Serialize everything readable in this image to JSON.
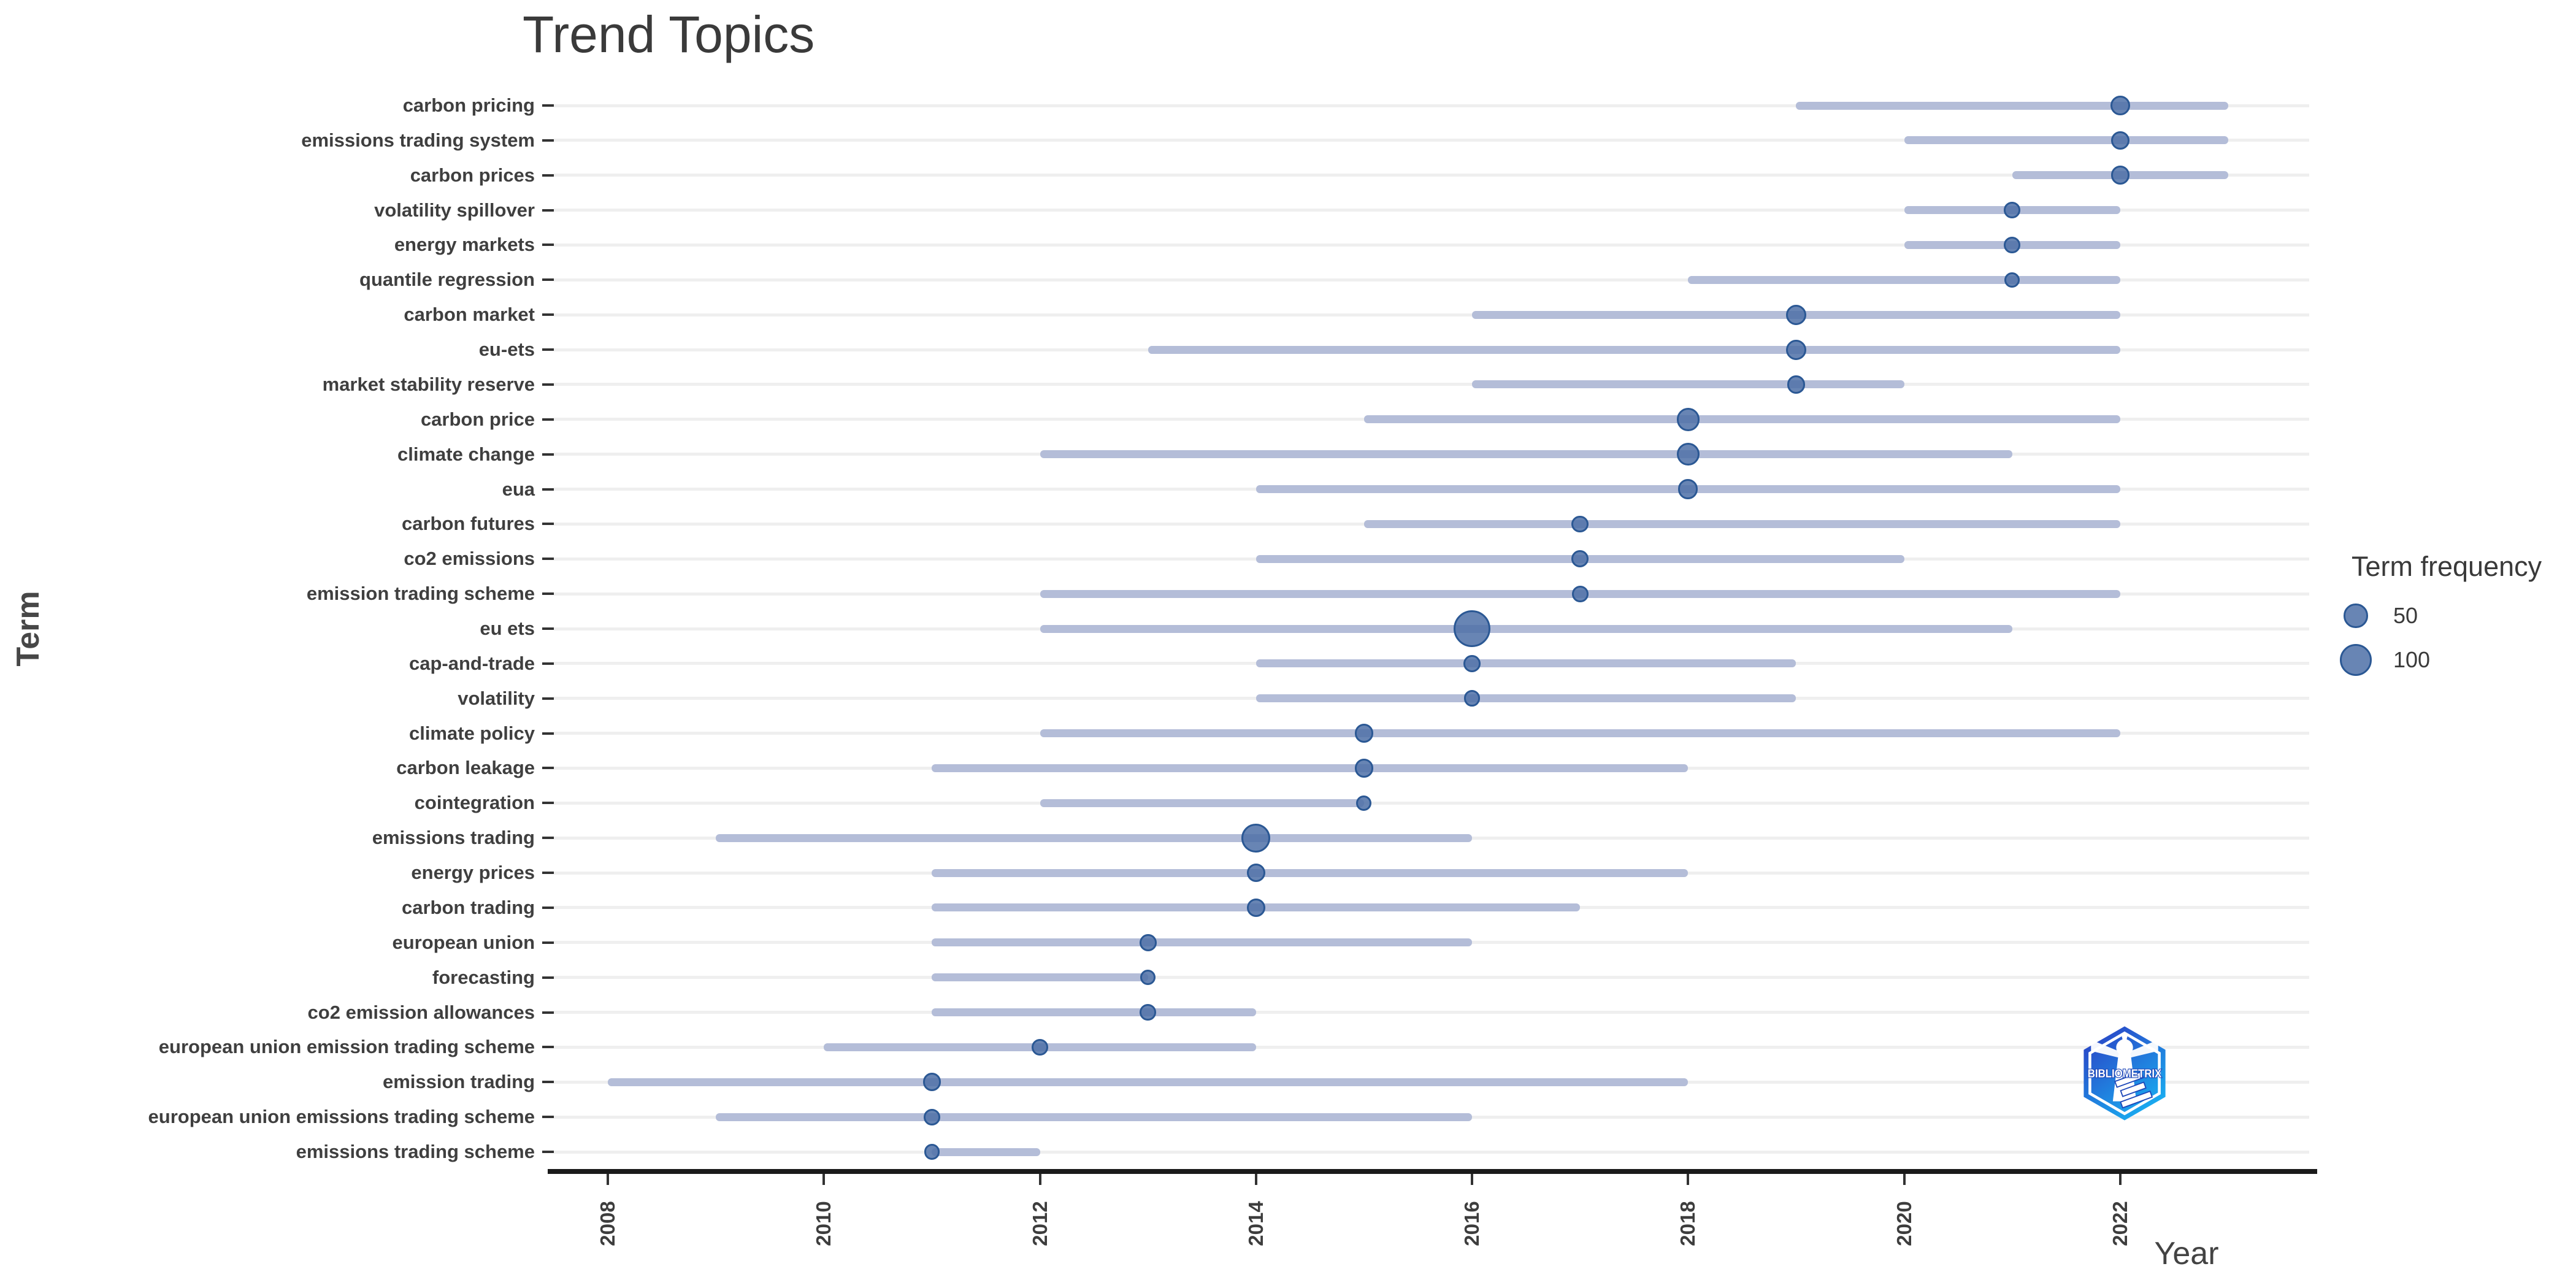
{
  "page": {
    "background": "#ffffff"
  },
  "chart_data": {
    "type": "scatter",
    "subtype": "trend-topics-interval",
    "title": "Trend Topics",
    "xlabel": "Year",
    "ylabel": "Term",
    "grid": "horizontal",
    "x_ticks": [
      2008,
      2010,
      2012,
      2014,
      2016,
      2018,
      2020,
      2022
    ],
    "xlim": [
      2007.5,
      2023.75
    ],
    "legend": {
      "title": "Term frequency",
      "position": "right",
      "sizes": [
        50,
        100
      ]
    },
    "size_scale": {
      "f_min": 5,
      "f_max": 140,
      "r_min": 9,
      "r_max": 30
    },
    "terms": [
      {
        "term": "carbon pricing",
        "freq": 30,
        "year_q1": 2019,
        "year_median": 2022,
        "year_q3": 2023
      },
      {
        "term": "emissions trading system",
        "freq": 26,
        "year_q1": 2020,
        "year_median": 2022,
        "year_q3": 2023
      },
      {
        "term": "carbon prices",
        "freq": 26,
        "year_q1": 2021,
        "year_median": 2022,
        "year_q3": 2023
      },
      {
        "term": "volatility spillover",
        "freq": 18,
        "year_q1": 2020,
        "year_median": 2021,
        "year_q3": 2022
      },
      {
        "term": "energy markets",
        "freq": 18,
        "year_q1": 2020,
        "year_median": 2021,
        "year_q3": 2022
      },
      {
        "term": "quantile regression",
        "freq": 15,
        "year_q1": 2018,
        "year_median": 2021,
        "year_q3": 2022
      },
      {
        "term": "carbon market",
        "freq": 32,
        "year_q1": 2016,
        "year_median": 2019,
        "year_q3": 2022
      },
      {
        "term": "eu-ets",
        "freq": 32,
        "year_q1": 2013,
        "year_median": 2019,
        "year_q3": 2022
      },
      {
        "term": "market stability reserve",
        "freq": 24,
        "year_q1": 2016,
        "year_median": 2019,
        "year_q3": 2020
      },
      {
        "term": "carbon price",
        "freq": 45,
        "year_q1": 2015,
        "year_median": 2018,
        "year_q3": 2022
      },
      {
        "term": "climate change",
        "freq": 45,
        "year_q1": 2012,
        "year_median": 2018,
        "year_q3": 2021
      },
      {
        "term": "eua",
        "freq": 30,
        "year_q1": 2014,
        "year_median": 2018,
        "year_q3": 2022
      },
      {
        "term": "carbon futures",
        "freq": 20,
        "year_q1": 2015,
        "year_median": 2017,
        "year_q3": 2022
      },
      {
        "term": "co2 emissions",
        "freq": 20,
        "year_q1": 2014,
        "year_median": 2017,
        "year_q3": 2020
      },
      {
        "term": "emission trading scheme",
        "freq": 18,
        "year_q1": 2012,
        "year_median": 2017,
        "year_q3": 2022
      },
      {
        "term": "eu ets",
        "freq": 140,
        "year_q1": 2012,
        "year_median": 2016,
        "year_q3": 2021
      },
      {
        "term": "cap-and-trade",
        "freq": 20,
        "year_q1": 2014,
        "year_median": 2016,
        "year_q3": 2019
      },
      {
        "term": "volatility",
        "freq": 18,
        "year_q1": 2014,
        "year_median": 2016,
        "year_q3": 2019
      },
      {
        "term": "climate policy",
        "freq": 26,
        "year_q1": 2012,
        "year_median": 2015,
        "year_q3": 2022
      },
      {
        "term": "carbon leakage",
        "freq": 26,
        "year_q1": 2011,
        "year_median": 2015,
        "year_q3": 2018
      },
      {
        "term": "cointegration",
        "freq": 15,
        "year_q1": 2012,
        "year_median": 2015,
        "year_q3": 2015
      },
      {
        "term": "emissions trading",
        "freq": 80,
        "year_q1": 2009,
        "year_median": 2014,
        "year_q3": 2016
      },
      {
        "term": "energy prices",
        "freq": 26,
        "year_q1": 2011,
        "year_median": 2014,
        "year_q3": 2018
      },
      {
        "term": "carbon trading",
        "freq": 26,
        "year_q1": 2011,
        "year_median": 2014,
        "year_q3": 2017
      },
      {
        "term": "european union",
        "freq": 20,
        "year_q1": 2011,
        "year_median": 2013,
        "year_q3": 2016
      },
      {
        "term": "forecasting",
        "freq": 15,
        "year_q1": 2011,
        "year_median": 2013,
        "year_q3": 2013
      },
      {
        "term": "co2 emission allowances",
        "freq": 18,
        "year_q1": 2011,
        "year_median": 2013,
        "year_q3": 2014
      },
      {
        "term": "european union emission trading scheme",
        "freq": 18,
        "year_q1": 2010,
        "year_median": 2012,
        "year_q3": 2014
      },
      {
        "term": "emission trading",
        "freq": 24,
        "year_q1": 2008,
        "year_median": 2011,
        "year_q3": 2018
      },
      {
        "term": "european union emissions trading scheme",
        "freq": 18,
        "year_q1": 2009,
        "year_median": 2011,
        "year_q3": 2016
      },
      {
        "term": "emissions trading scheme",
        "freq": 15,
        "year_q1": 2011,
        "year_median": 2011,
        "year_q3": 2012
      }
    ]
  },
  "logo": {
    "text": "BIBLIOMETRIX"
  },
  "colors": {
    "accent_segment": "#b4bdd8",
    "dot_fill": "rgba(77,112,167,0.85)",
    "dot_stroke": "#2b5894",
    "grid": "#efefef",
    "axis_line": "#1a1a1a",
    "label": "#3f3f3f",
    "tick": "#333333",
    "logo_top": "#2b3fc4",
    "logo_bottom": "#17b8f5",
    "logo_text_stroke": "#1c46b8"
  }
}
